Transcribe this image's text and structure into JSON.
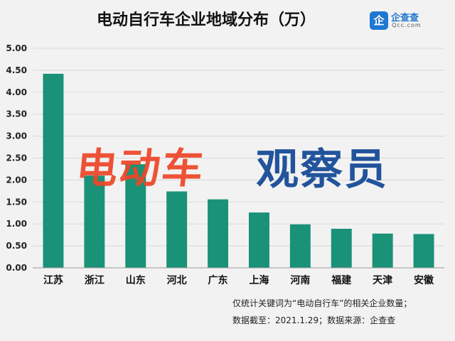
{
  "title": "电动自行车企业地域分布（万）",
  "logo": {
    "mark": "企",
    "name": "企查查",
    "sub": "Qcc.com"
  },
  "watermark": {
    "left": "电动车",
    "right": "观察员"
  },
  "notes": {
    "line1": "仅统计关键词为“电动自行车”的相关企业数量；",
    "line2": "数据截至：2021.1.29；数据来源：企查查"
  },
  "colors": {
    "bar": "#1a9277",
    "background": "#f2f2f2",
    "grid": "#d9d9d9"
  },
  "chart_data": {
    "type": "bar",
    "categories": [
      "江苏",
      "浙江",
      "山东",
      "河北",
      "广东",
      "上海",
      "河南",
      "福建",
      "天津",
      "安徽"
    ],
    "values": [
      4.42,
      2.1,
      2.36,
      1.74,
      1.56,
      1.26,
      0.99,
      0.89,
      0.78,
      0.77
    ],
    "ylim": [
      0,
      5
    ],
    "yticks": [
      "0.00",
      "0.50",
      "1.00",
      "1.50",
      "2.00",
      "2.50",
      "3.00",
      "3.50",
      "4.00",
      "4.50",
      "5.00"
    ],
    "grid": true,
    "xlabel": "",
    "ylabel": ""
  }
}
